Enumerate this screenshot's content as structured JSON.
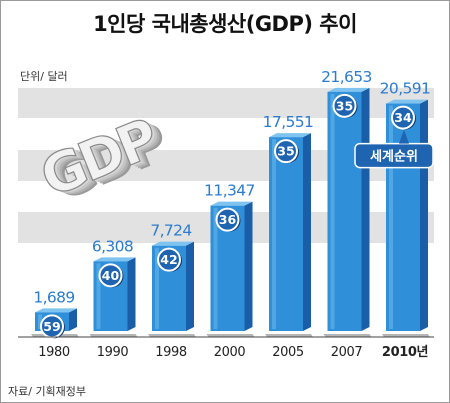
{
  "chart_data": {
    "type": "bar",
    "title": "1인당 국내총생산(GDP) 추이",
    "unit_label": "단위/ 달러",
    "source": "자료/ 기획재정부",
    "categories": [
      "1980",
      "1990",
      "1998",
      "2000",
      "2005",
      "2007",
      "2010년"
    ],
    "values": [
      1689,
      6308,
      7724,
      11347,
      17551,
      21653,
      20591
    ],
    "value_labels": [
      "1,689",
      "6,308",
      "7,724",
      "11,347",
      "17,551",
      "21,653",
      "20,591"
    ],
    "world_rank": [
      "59",
      "40",
      "42",
      "36",
      "35",
      "35",
      "34"
    ],
    "callout": "세계순위",
    "decoration_text": "GDP",
    "ylim": [
      0,
      22000
    ],
    "grid": false,
    "colors": {
      "bar_front": "#2f8fd8",
      "bar_side": "#1a5ea8",
      "bar_top": "#7fc4f0",
      "badge": "#1f64b0",
      "value_text": "#2b7cd0",
      "callout_bg": "#1f64b0",
      "band": "#e2e2e2"
    }
  }
}
